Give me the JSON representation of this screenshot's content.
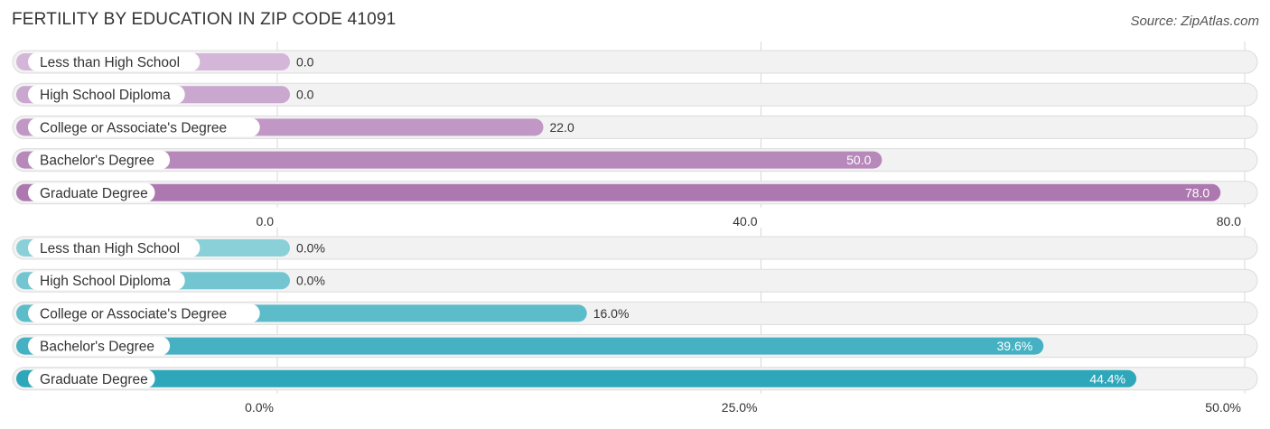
{
  "title": "FERTILITY BY EDUCATION IN ZIP CODE 41091",
  "source": "Source: ZipAtlas.com",
  "chart_data": [
    {
      "type": "bar",
      "orientation": "horizontal",
      "categories": [
        "Less than High School",
        "High School Diploma",
        "College or Associate's Degree",
        "Bachelor's Degree",
        "Graduate Degree"
      ],
      "values": [
        0.0,
        0.0,
        22.0,
        50.0,
        78.0
      ],
      "value_labels": [
        "0.0",
        "0.0",
        "22.0",
        "50.0",
        "78.0"
      ],
      "xlim": [
        0,
        80
      ],
      "ticks": [
        0,
        40,
        80
      ],
      "tick_labels": [
        "0.0",
        "40.0",
        "80.0"
      ],
      "color_light": "#d4b6d9",
      "color_dark": "#ad78b0",
      "grid": true
    },
    {
      "type": "bar",
      "orientation": "horizontal",
      "categories": [
        "Less than High School",
        "High School Diploma",
        "College or Associate's Degree",
        "Bachelor's Degree",
        "Graduate Degree"
      ],
      "values": [
        0.0,
        0.0,
        16.0,
        39.6,
        44.4
      ],
      "value_labels": [
        "0.0%",
        "0.0%",
        "16.0%",
        "39.6%",
        "44.4%"
      ],
      "xlim": [
        0,
        50
      ],
      "ticks": [
        0,
        25,
        50
      ],
      "tick_labels": [
        "0.0%",
        "25.0%",
        "50.0%"
      ],
      "color_light": "#8ad0d8",
      "color_dark": "#2ea7ba",
      "grid": true
    }
  ]
}
